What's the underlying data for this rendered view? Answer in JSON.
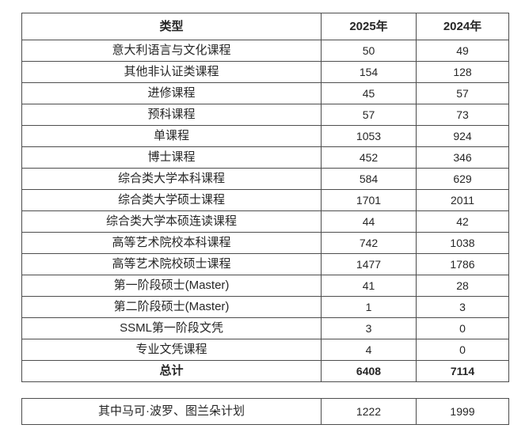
{
  "colors": {
    "background": "#ffffff",
    "border": "#4d4d4d",
    "text": "#262626"
  },
  "table": {
    "headers": [
      "类型",
      "2025年",
      "2024年"
    ],
    "rows": [
      {
        "label": "意大利语言与文化课程",
        "v2025": "50",
        "v2024": "49"
      },
      {
        "label": "其他非认证类课程",
        "v2025": "154",
        "v2024": "128"
      },
      {
        "label": "进修课程",
        "v2025": "45",
        "v2024": "57"
      },
      {
        "label": "预科课程",
        "v2025": "57",
        "v2024": "73"
      },
      {
        "label": "单课程",
        "v2025": "1053",
        "v2024": "924"
      },
      {
        "label": "博士课程",
        "v2025": "452",
        "v2024": "346"
      },
      {
        "label": "综合类大学本科课程",
        "v2025": "584",
        "v2024": "629"
      },
      {
        "label": "综合类大学硕士课程",
        "v2025": "1701",
        "v2024": "2011"
      },
      {
        "label": "综合类大学本硕连读课程",
        "v2025": "44",
        "v2024": "42"
      },
      {
        "label": "高等艺术院校本科课程",
        "v2025": "742",
        "v2024": "1038"
      },
      {
        "label": "高等艺术院校硕士课程",
        "v2025": "1477",
        "v2024": "1786"
      },
      {
        "label": "第一阶段硕士(Master)",
        "v2025": "41",
        "v2024": "28"
      },
      {
        "label": "第二阶段硕士(Master)",
        "v2025": "1",
        "v2024": "3"
      },
      {
        "label": "SSML第一阶段文凭",
        "v2025": "3",
        "v2024": "0"
      },
      {
        "label": "专业文凭课程",
        "v2025": "4",
        "v2024": "0"
      }
    ],
    "total_row": {
      "label": "总计",
      "v2025": "6408",
      "v2024": "7114"
    }
  },
  "footer_table": {
    "label": "其中马可·波罗、图兰朵计划",
    "v2025": "1222",
    "v2024": "1999"
  }
}
